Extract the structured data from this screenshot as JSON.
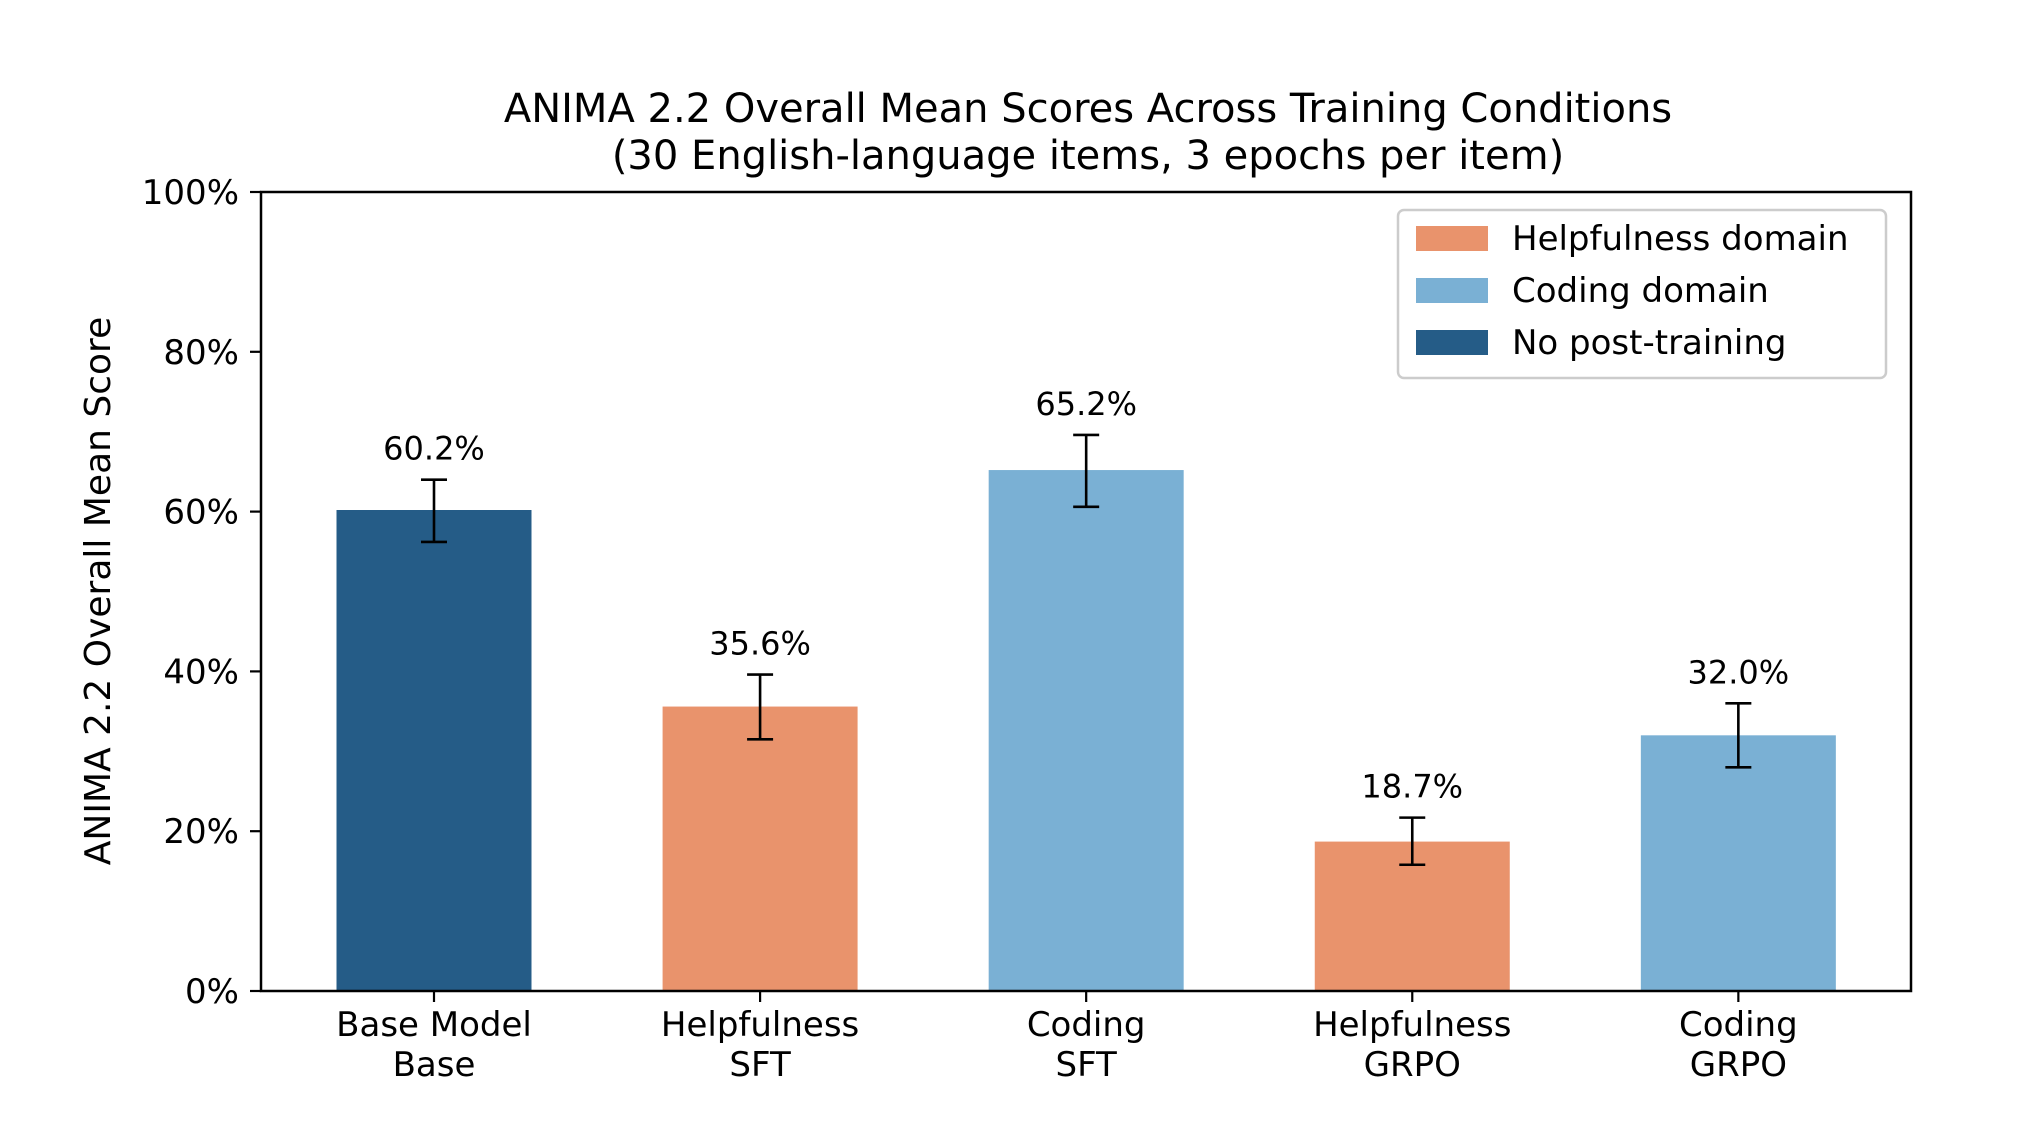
{
  "chart_data": {
    "type": "bar",
    "title": "ANIMA 2.2 Overall Mean Scores Across Training Conditions",
    "subtitle": "(30 English-language items, 3 epochs per item)",
    "xlabel": "",
    "ylabel": "ANIMA 2.2 Overall Mean Score",
    "ylim": [
      0,
      100
    ],
    "y_ticks": [
      "0%",
      "20%",
      "40%",
      "60%",
      "80%",
      "100%"
    ],
    "y_tick_values": [
      0,
      20,
      40,
      60,
      80,
      100
    ],
    "grid": false,
    "legend_position": "top-right",
    "categories": [
      {
        "line1": "Base Model",
        "line2": "Base"
      },
      {
        "line1": "Helpfulness",
        "line2": "SFT"
      },
      {
        "line1": "Coding",
        "line2": "SFT"
      },
      {
        "line1": "Helpfulness",
        "line2": "GRPO"
      },
      {
        "line1": "Coding",
        "line2": "GRPO"
      }
    ],
    "values": [
      60.2,
      35.6,
      65.2,
      18.7,
      32.0
    ],
    "value_labels": [
      "60.2%",
      "35.6%",
      "65.2%",
      "18.7%",
      "32.0%"
    ],
    "error_low": [
      56.2,
      31.5,
      60.6,
      15.8,
      28.0
    ],
    "error_high": [
      64.0,
      39.6,
      69.6,
      21.7,
      36.0
    ],
    "bar_groups": [
      "none",
      "helpfulness",
      "coding",
      "helpfulness",
      "coding"
    ],
    "legend": [
      {
        "key": "helpfulness",
        "label": "Helpfulness domain",
        "color": "#E9936C"
      },
      {
        "key": "coding",
        "label": "Coding domain",
        "color": "#7AB0D4"
      },
      {
        "key": "none",
        "label": "No post-training",
        "color": "#255C87"
      }
    ]
  }
}
